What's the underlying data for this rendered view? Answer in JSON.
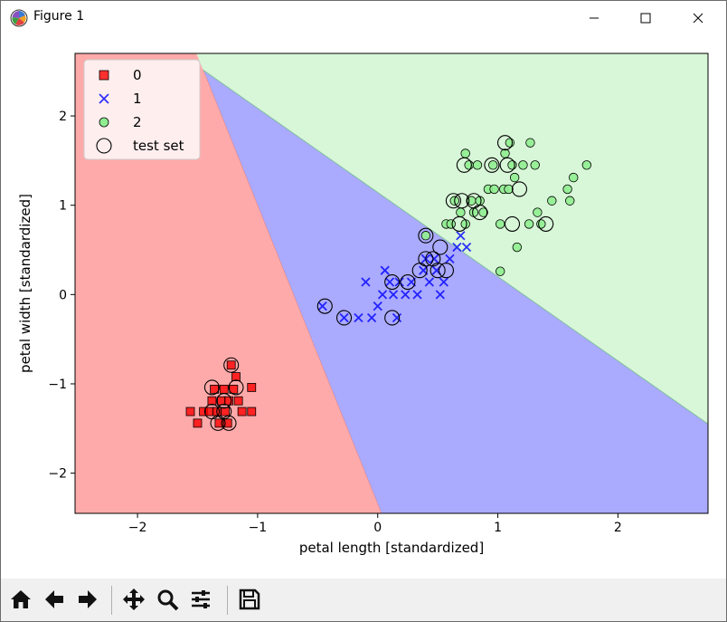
{
  "window": {
    "title": "Figure 1"
  },
  "toolbar": {
    "buttons": [
      {
        "name": "home-icon"
      },
      {
        "name": "back-icon"
      },
      {
        "name": "forward-icon"
      },
      {
        "name": "pan-icon"
      },
      {
        "name": "zoom-icon"
      },
      {
        "name": "configure-subplots-icon"
      },
      {
        "name": "save-icon"
      }
    ]
  },
  "chart_data": {
    "type": "scatter",
    "xlabel": "petal length [standardized]",
    "ylabel": "petal width [standardized]",
    "xlim": [
      -2.52,
      2.75
    ],
    "ylim": [
      -2.45,
      2.7
    ],
    "xticks": [
      -2,
      -1,
      0,
      1,
      2
    ],
    "yticks": [
      -2,
      -1,
      0,
      1,
      2
    ],
    "xtick_labels": [
      "−2",
      "−1",
      "0",
      "1",
      "2"
    ],
    "ytick_labels": [
      "−2",
      "−1",
      "0",
      "1",
      "2"
    ],
    "legend_position": "top-left",
    "regions": [
      {
        "class": "0",
        "color": "#ffaaaa",
        "boundary": [
          [
            -1.51,
            2.7
          ],
          [
            0.03,
            -2.45
          ]
        ]
      },
      {
        "class": "1",
        "color": "#aaaaff"
      },
      {
        "class": "2",
        "color": "#d8f6d8",
        "boundary": [
          [
            -1.28,
            2.35
          ],
          [
            2.75,
            -1.45
          ]
        ]
      }
    ],
    "series": [
      {
        "name": "0",
        "marker": "square",
        "color": "#ff0000",
        "points": [
          [
            -1.56,
            -1.31
          ],
          [
            -1.5,
            -1.44
          ],
          [
            -1.45,
            -1.31
          ],
          [
            -1.4,
            -1.31
          ],
          [
            -1.38,
            -1.19
          ],
          [
            -1.36,
            -1.06
          ],
          [
            -1.34,
            -1.31
          ],
          [
            -1.32,
            -1.44
          ],
          [
            -1.3,
            -1.19
          ],
          [
            -1.28,
            -1.06
          ],
          [
            -1.27,
            -1.31
          ],
          [
            -1.25,
            -1.44
          ],
          [
            -1.24,
            -1.19
          ],
          [
            -1.22,
            -0.79
          ],
          [
            -1.2,
            -1.06
          ],
          [
            -1.18,
            -0.92
          ],
          [
            -1.16,
            -1.19
          ],
          [
            -1.13,
            -1.31
          ],
          [
            -1.05,
            -1.31
          ],
          [
            -1.05,
            -1.04
          ]
        ]
      },
      {
        "name": "1",
        "marker": "x",
        "color": "#0000ff",
        "points": [
          [
            -0.46,
            -0.13
          ],
          [
            -0.28,
            -0.26
          ],
          [
            -0.16,
            -0.26
          ],
          [
            -0.1,
            0.14
          ],
          [
            -0.05,
            -0.26
          ],
          [
            0.0,
            -0.13
          ],
          [
            0.04,
            0.0
          ],
          [
            0.06,
            0.27
          ],
          [
            0.1,
            0.14
          ],
          [
            0.13,
            0.0
          ],
          [
            0.16,
            -0.26
          ],
          [
            0.18,
            0.14
          ],
          [
            0.23,
            0.0
          ],
          [
            0.28,
            0.14
          ],
          [
            0.33,
            0.0
          ],
          [
            0.38,
            0.27
          ],
          [
            0.4,
            0.4
          ],
          [
            0.43,
            0.14
          ],
          [
            0.47,
            0.4
          ],
          [
            0.49,
            0.27
          ],
          [
            0.52,
            0.0
          ],
          [
            0.55,
            0.14
          ],
          [
            0.6,
            0.4
          ],
          [
            0.66,
            0.53
          ],
          [
            0.69,
            0.66
          ],
          [
            0.74,
            0.53
          ]
        ]
      },
      {
        "name": "2",
        "marker": "circle",
        "color": "#90ee90",
        "points": [
          [
            0.4,
            0.66
          ],
          [
            0.57,
            0.79
          ],
          [
            0.61,
            0.79
          ],
          [
            0.64,
            1.05
          ],
          [
            0.69,
            0.92
          ],
          [
            0.73,
            0.79
          ],
          [
            0.73,
            1.58
          ],
          [
            0.76,
            1.45
          ],
          [
            0.78,
            1.05
          ],
          [
            0.8,
            0.92
          ],
          [
            0.83,
            1.45
          ],
          [
            0.85,
            1.05
          ],
          [
            0.88,
            0.92
          ],
          [
            0.92,
            1.18
          ],
          [
            0.96,
            1.45
          ],
          [
            0.97,
            1.18
          ],
          [
            1.02,
            0.79
          ],
          [
            1.05,
            1.18
          ],
          [
            1.06,
            1.58
          ],
          [
            1.09,
            1.18
          ],
          [
            1.1,
            1.7
          ],
          [
            1.12,
            1.45
          ],
          [
            1.14,
            1.31
          ],
          [
            1.16,
            0.53
          ],
          [
            1.21,
            1.45
          ],
          [
            1.26,
            0.79
          ],
          [
            1.27,
            1.7
          ],
          [
            1.31,
            1.45
          ],
          [
            1.33,
            0.92
          ],
          [
            1.36,
            0.79
          ],
          [
            1.45,
            1.05
          ],
          [
            1.58,
            1.18
          ],
          [
            1.6,
            1.05
          ],
          [
            1.63,
            1.31
          ],
          [
            1.74,
            1.45
          ],
          [
            1.02,
            0.26
          ]
        ]
      },
      {
        "name": "test set",
        "marker": "ring",
        "color": "none",
        "points": [
          [
            -1.38,
            -1.31
          ],
          [
            -1.33,
            -1.44
          ],
          [
            -1.28,
            -1.31
          ],
          [
            -1.24,
            -1.44
          ],
          [
            -1.22,
            -0.79
          ],
          [
            -1.18,
            -1.04
          ],
          [
            -1.38,
            -1.04
          ],
          [
            -1.28,
            -1.19
          ],
          [
            -0.44,
            -0.13
          ],
          [
            -0.28,
            -0.26
          ],
          [
            0.12,
            0.14
          ],
          [
            0.12,
            -0.26
          ],
          [
            0.25,
            0.14
          ],
          [
            0.35,
            0.27
          ],
          [
            0.4,
            0.4
          ],
          [
            0.46,
            0.4
          ],
          [
            0.5,
            0.27
          ],
          [
            0.52,
            0.53
          ],
          [
            0.57,
            0.27
          ],
          [
            0.4,
            0.66
          ],
          [
            0.63,
            1.05
          ],
          [
            0.68,
            0.79
          ],
          [
            0.72,
            1.45
          ],
          [
            0.8,
            1.05
          ],
          [
            0.7,
            1.05
          ],
          [
            0.85,
            0.92
          ],
          [
            0.95,
            1.45
          ],
          [
            1.06,
            1.7
          ],
          [
            1.08,
            1.45
          ],
          [
            1.12,
            0.79
          ],
          [
            1.18,
            1.18
          ],
          [
            1.4,
            0.79
          ]
        ]
      }
    ]
  }
}
